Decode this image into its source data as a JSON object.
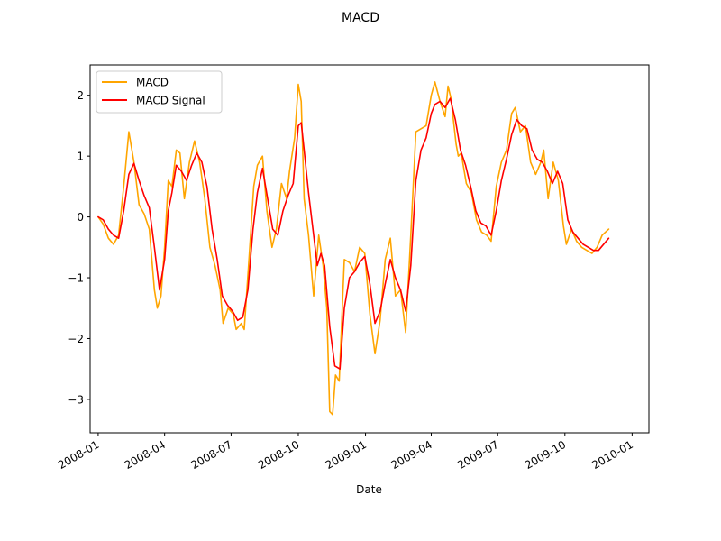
{
  "chart_data": {
    "type": "line",
    "title": "MACD",
    "xlabel": "Date",
    "ylabel": "",
    "x_axis": {
      "type": "date",
      "range": [
        "2007-12-21",
        "2010-01-24"
      ],
      "ticks": [
        {
          "date": "2008-01-01",
          "label": "2008-01"
        },
        {
          "date": "2008-04-01",
          "label": "2008-04"
        },
        {
          "date": "2008-07-01",
          "label": "2008-07"
        },
        {
          "date": "2008-10-01",
          "label": "2008-10"
        },
        {
          "date": "2009-01-01",
          "label": "2009-01"
        },
        {
          "date": "2009-04-01",
          "label": "2009-04"
        },
        {
          "date": "2009-07-01",
          "label": "2009-07"
        },
        {
          "date": "2009-10-01",
          "label": "2009-10"
        },
        {
          "date": "2010-01-01",
          "label": "2010-01"
        }
      ]
    },
    "y_axis": {
      "ylim": [
        -3.55,
        2.5
      ],
      "ticks": [
        {
          "value": -3,
          "label": "−3"
        },
        {
          "value": -2,
          "label": "−2"
        },
        {
          "value": -1,
          "label": "−1"
        },
        {
          "value": 0,
          "label": "0"
        },
        {
          "value": 1,
          "label": "1"
        },
        {
          "value": 2,
          "label": "2"
        }
      ]
    },
    "grid": false,
    "legend": {
      "position": "top-left"
    },
    "series": [
      {
        "name": "MACD",
        "color": "#FFA500",
        "points": [
          [
            "2008-01-01",
            0.0
          ],
          [
            "2008-01-08",
            -0.12
          ],
          [
            "2008-01-15",
            -0.35
          ],
          [
            "2008-01-22",
            -0.45
          ],
          [
            "2008-01-29",
            -0.3
          ],
          [
            "2008-02-05",
            0.5
          ],
          [
            "2008-02-12",
            1.4
          ],
          [
            "2008-02-19",
            0.9
          ],
          [
            "2008-02-26",
            0.2
          ],
          [
            "2008-03-04",
            0.05
          ],
          [
            "2008-03-11",
            -0.2
          ],
          [
            "2008-03-18",
            -1.2
          ],
          [
            "2008-03-22",
            -1.5
          ],
          [
            "2008-03-27",
            -1.3
          ],
          [
            "2008-04-01",
            -0.5
          ],
          [
            "2008-04-06",
            0.6
          ],
          [
            "2008-04-11",
            0.5
          ],
          [
            "2008-04-17",
            1.1
          ],
          [
            "2008-04-22",
            1.05
          ],
          [
            "2008-04-28",
            0.3
          ],
          [
            "2008-05-05",
            0.9
          ],
          [
            "2008-05-12",
            1.25
          ],
          [
            "2008-05-19",
            0.9
          ],
          [
            "2008-05-26",
            0.3
          ],
          [
            "2008-06-02",
            -0.5
          ],
          [
            "2008-06-09",
            -0.8
          ],
          [
            "2008-06-16",
            -1.2
          ],
          [
            "2008-06-20",
            -1.75
          ],
          [
            "2008-06-27",
            -1.5
          ],
          [
            "2008-07-04",
            -1.6
          ],
          [
            "2008-07-08",
            -1.85
          ],
          [
            "2008-07-15",
            -1.75
          ],
          [
            "2008-07-19",
            -1.85
          ],
          [
            "2008-07-26",
            -0.6
          ],
          [
            "2008-08-01",
            0.5
          ],
          [
            "2008-08-06",
            0.85
          ],
          [
            "2008-08-13",
            1.0
          ],
          [
            "2008-08-19",
            0.1
          ],
          [
            "2008-08-26",
            -0.5
          ],
          [
            "2008-09-01",
            -0.2
          ],
          [
            "2008-09-08",
            0.55
          ],
          [
            "2008-09-15",
            0.3
          ],
          [
            "2008-09-19",
            0.75
          ],
          [
            "2008-09-26",
            1.3
          ],
          [
            "2008-10-01",
            2.18
          ],
          [
            "2008-10-05",
            1.9
          ],
          [
            "2008-10-09",
            0.3
          ],
          [
            "2008-10-15",
            -0.3
          ],
          [
            "2008-10-22",
            -1.3
          ],
          [
            "2008-10-29",
            -0.3
          ],
          [
            "2008-11-04",
            -0.8
          ],
          [
            "2008-11-09",
            -1.5
          ],
          [
            "2008-11-13",
            -3.2
          ],
          [
            "2008-11-17",
            -3.25
          ],
          [
            "2008-11-21",
            -2.6
          ],
          [
            "2008-11-26",
            -2.7
          ],
          [
            "2008-12-03",
            -0.7
          ],
          [
            "2008-12-10",
            -0.75
          ],
          [
            "2008-12-17",
            -0.9
          ],
          [
            "2008-12-24",
            -0.5
          ],
          [
            "2008-12-31",
            -0.6
          ],
          [
            "2009-01-07",
            -1.6
          ],
          [
            "2009-01-14",
            -2.25
          ],
          [
            "2009-01-21",
            -1.7
          ],
          [
            "2009-01-28",
            -0.7
          ],
          [
            "2009-02-04",
            -0.35
          ],
          [
            "2009-02-11",
            -1.3
          ],
          [
            "2009-02-18",
            -1.2
          ],
          [
            "2009-02-25",
            -1.9
          ],
          [
            "2009-03-04",
            -0.3
          ],
          [
            "2009-03-11",
            1.4
          ],
          [
            "2009-03-18",
            1.45
          ],
          [
            "2009-03-25",
            1.5
          ],
          [
            "2009-04-01",
            2.0
          ],
          [
            "2009-04-06",
            2.22
          ],
          [
            "2009-04-13",
            1.9
          ],
          [
            "2009-04-20",
            1.65
          ],
          [
            "2009-04-24",
            2.15
          ],
          [
            "2009-04-28",
            1.95
          ],
          [
            "2009-05-05",
            1.2
          ],
          [
            "2009-05-08",
            1.0
          ],
          [
            "2009-05-12",
            1.05
          ],
          [
            "2009-05-19",
            0.55
          ],
          [
            "2009-05-26",
            0.4
          ],
          [
            "2009-06-02",
            -0.05
          ],
          [
            "2009-06-09",
            -0.25
          ],
          [
            "2009-06-16",
            -0.3
          ],
          [
            "2009-06-22",
            -0.4
          ],
          [
            "2009-06-29",
            0.5
          ],
          [
            "2009-07-06",
            0.9
          ],
          [
            "2009-07-13",
            1.1
          ],
          [
            "2009-07-20",
            1.7
          ],
          [
            "2009-07-25",
            1.8
          ],
          [
            "2009-08-01",
            1.4
          ],
          [
            "2009-08-08",
            1.5
          ],
          [
            "2009-08-15",
            0.9
          ],
          [
            "2009-08-22",
            0.7
          ],
          [
            "2009-08-29",
            0.9
          ],
          [
            "2009-09-02",
            1.1
          ],
          [
            "2009-09-08",
            0.3
          ],
          [
            "2009-09-15",
            0.9
          ],
          [
            "2009-09-22",
            0.6
          ],
          [
            "2009-09-29",
            -0.15
          ],
          [
            "2009-10-03",
            -0.45
          ],
          [
            "2009-10-10",
            -0.2
          ],
          [
            "2009-10-17",
            -0.4
          ],
          [
            "2009-10-24",
            -0.5
          ],
          [
            "2009-10-31",
            -0.55
          ],
          [
            "2009-11-07",
            -0.6
          ],
          [
            "2009-11-14",
            -0.5
          ],
          [
            "2009-11-21",
            -0.3
          ],
          [
            "2009-11-30",
            -0.2
          ]
        ]
      },
      {
        "name": "MACD Signal",
        "color": "#FF0000",
        "points": [
          [
            "2008-01-01",
            0.0
          ],
          [
            "2008-01-08",
            -0.05
          ],
          [
            "2008-01-15",
            -0.2
          ],
          [
            "2008-01-22",
            -0.3
          ],
          [
            "2008-01-29",
            -0.35
          ],
          [
            "2008-02-05",
            0.1
          ],
          [
            "2008-02-12",
            0.7
          ],
          [
            "2008-02-19",
            0.88
          ],
          [
            "2008-02-26",
            0.6
          ],
          [
            "2008-03-04",
            0.35
          ],
          [
            "2008-03-11",
            0.15
          ],
          [
            "2008-03-18",
            -0.5
          ],
          [
            "2008-03-25",
            -1.2
          ],
          [
            "2008-04-01",
            -0.7
          ],
          [
            "2008-04-06",
            0.1
          ],
          [
            "2008-04-11",
            0.4
          ],
          [
            "2008-04-17",
            0.85
          ],
          [
            "2008-04-24",
            0.75
          ],
          [
            "2008-05-01",
            0.6
          ],
          [
            "2008-05-08",
            0.85
          ],
          [
            "2008-05-15",
            1.05
          ],
          [
            "2008-05-22",
            0.9
          ],
          [
            "2008-05-29",
            0.5
          ],
          [
            "2008-06-05",
            -0.2
          ],
          [
            "2008-06-12",
            -0.7
          ],
          [
            "2008-06-19",
            -1.3
          ],
          [
            "2008-06-26",
            -1.45
          ],
          [
            "2008-07-03",
            -1.55
          ],
          [
            "2008-07-10",
            -1.7
          ],
          [
            "2008-07-17",
            -1.65
          ],
          [
            "2008-07-24",
            -1.2
          ],
          [
            "2008-07-31",
            -0.2
          ],
          [
            "2008-08-06",
            0.4
          ],
          [
            "2008-08-13",
            0.8
          ],
          [
            "2008-08-20",
            0.3
          ],
          [
            "2008-08-27",
            -0.2
          ],
          [
            "2008-09-03",
            -0.3
          ],
          [
            "2008-09-10",
            0.1
          ],
          [
            "2008-09-17",
            0.35
          ],
          [
            "2008-09-24",
            0.55
          ],
          [
            "2008-10-01",
            1.5
          ],
          [
            "2008-10-05",
            1.55
          ],
          [
            "2008-10-09",
            1.1
          ],
          [
            "2008-10-15",
            0.4
          ],
          [
            "2008-10-22",
            -0.3
          ],
          [
            "2008-10-27",
            -0.8
          ],
          [
            "2008-11-01",
            -0.6
          ],
          [
            "2008-11-06",
            -0.8
          ],
          [
            "2008-11-13",
            -1.8
          ],
          [
            "2008-11-20",
            -2.45
          ],
          [
            "2008-11-27",
            -2.5
          ],
          [
            "2008-12-03",
            -1.5
          ],
          [
            "2008-12-10",
            -1.0
          ],
          [
            "2008-12-17",
            -0.9
          ],
          [
            "2008-12-24",
            -0.75
          ],
          [
            "2008-12-31",
            -0.65
          ],
          [
            "2009-01-07",
            -1.1
          ],
          [
            "2009-01-14",
            -1.75
          ],
          [
            "2009-01-21",
            -1.55
          ],
          [
            "2009-01-28",
            -1.1
          ],
          [
            "2009-02-04",
            -0.7
          ],
          [
            "2009-02-11",
            -1.0
          ],
          [
            "2009-02-18",
            -1.2
          ],
          [
            "2009-02-25",
            -1.55
          ],
          [
            "2009-03-04",
            -0.8
          ],
          [
            "2009-03-11",
            0.6
          ],
          [
            "2009-03-18",
            1.1
          ],
          [
            "2009-03-25",
            1.3
          ],
          [
            "2009-04-01",
            1.7
          ],
          [
            "2009-04-06",
            1.85
          ],
          [
            "2009-04-13",
            1.9
          ],
          [
            "2009-04-20",
            1.8
          ],
          [
            "2009-04-27",
            1.95
          ],
          [
            "2009-05-04",
            1.6
          ],
          [
            "2009-05-11",
            1.1
          ],
          [
            "2009-05-18",
            0.85
          ],
          [
            "2009-05-25",
            0.5
          ],
          [
            "2009-06-01",
            0.1
          ],
          [
            "2009-06-08",
            -0.1
          ],
          [
            "2009-06-15",
            -0.15
          ],
          [
            "2009-06-22",
            -0.3
          ],
          [
            "2009-06-29",
            0.1
          ],
          [
            "2009-07-06",
            0.6
          ],
          [
            "2009-07-13",
            0.95
          ],
          [
            "2009-07-20",
            1.35
          ],
          [
            "2009-07-27",
            1.6
          ],
          [
            "2009-08-03",
            1.5
          ],
          [
            "2009-08-10",
            1.45
          ],
          [
            "2009-08-17",
            1.1
          ],
          [
            "2009-08-24",
            0.95
          ],
          [
            "2009-08-31",
            0.9
          ],
          [
            "2009-09-07",
            0.75
          ],
          [
            "2009-09-14",
            0.55
          ],
          [
            "2009-09-21",
            0.75
          ],
          [
            "2009-09-28",
            0.55
          ],
          [
            "2009-10-05",
            -0.05
          ],
          [
            "2009-10-12",
            -0.25
          ],
          [
            "2009-10-19",
            -0.35
          ],
          [
            "2009-10-26",
            -0.45
          ],
          [
            "2009-11-02",
            -0.5
          ],
          [
            "2009-11-09",
            -0.55
          ],
          [
            "2009-11-16",
            -0.55
          ],
          [
            "2009-11-23",
            -0.45
          ],
          [
            "2009-11-30",
            -0.35
          ]
        ]
      }
    ]
  }
}
